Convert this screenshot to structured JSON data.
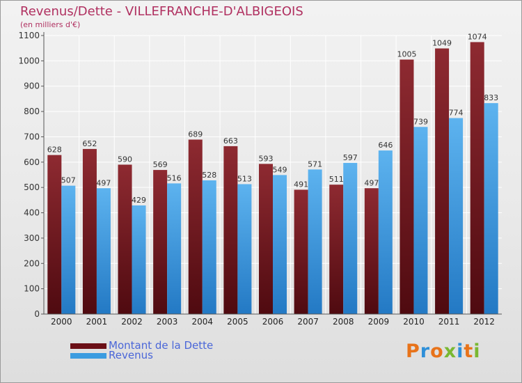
{
  "header": {
    "title": "Revenus/Dette - VILLEFRANCHE-D'ALBIGEOIS",
    "subtitle": "(en milliers d'€)"
  },
  "colors": {
    "title": "#b03060",
    "dette": "#7a1a22",
    "revenus": "#3b9ce0",
    "legend_text": "#4a66d8"
  },
  "chart_data": {
    "type": "bar",
    "title": "Revenus/Dette - VILLEFRANCHE-D'ALBIGEOIS",
    "subtitle": "(en milliers d'€)",
    "categories": [
      "2000",
      "2001",
      "2002",
      "2003",
      "2004",
      "2005",
      "2006",
      "2007",
      "2008",
      "2009",
      "2010",
      "2011",
      "2012"
    ],
    "series": [
      {
        "name": "Montant de la Dette",
        "values": [
          628,
          652,
          590,
          569,
          689,
          663,
          593,
          491,
          511,
          497,
          1005,
          1049,
          1074
        ]
      },
      {
        "name": "Revenus",
        "values": [
          507,
          497,
          429,
          516,
          528,
          513,
          549,
          571,
          597,
          646,
          739,
          774,
          833
        ]
      }
    ],
    "ylim": [
      0,
      1100
    ],
    "yticks": [
      0,
      100,
      200,
      300,
      400,
      500,
      600,
      700,
      800,
      900,
      1000,
      1100
    ],
    "grid": true,
    "legend_position": "bottom-left",
    "data_labels": true
  },
  "legend": {
    "items": [
      {
        "label": "Montant de la Dette"
      },
      {
        "label": "Revenus"
      }
    ]
  },
  "logo": {
    "letters": [
      "P",
      "r",
      "o",
      "x",
      "i",
      "t",
      "i"
    ],
    "colors": [
      "#e8731a",
      "#2e8fd8",
      "#e8731a",
      "#79b832",
      "#2e8fd8",
      "#e8731a",
      "#79b832"
    ]
  }
}
